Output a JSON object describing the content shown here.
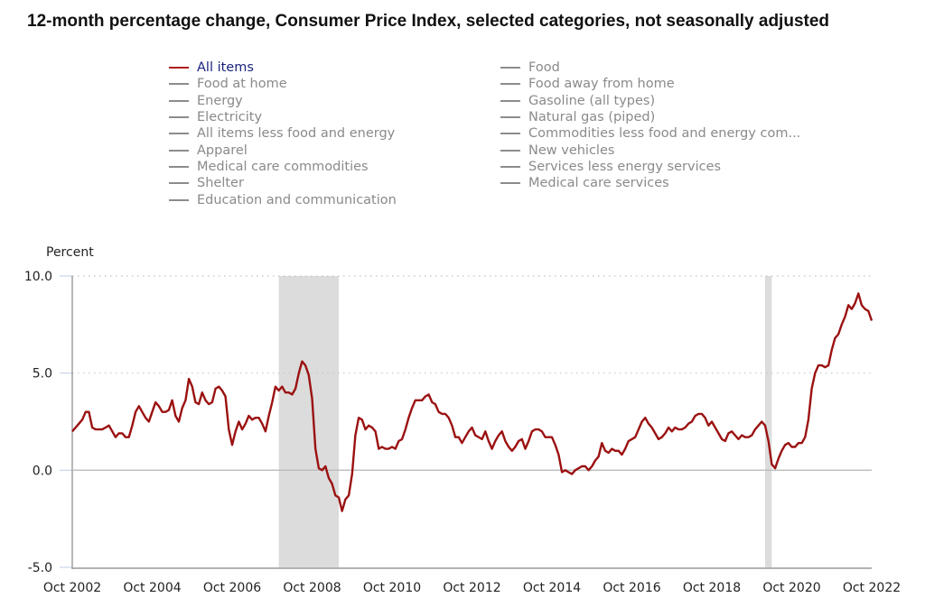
{
  "chart_data": {
    "type": "line",
    "title": "12-month percentage change, Consumer Price Index, selected categories, not seasonally adjusted",
    "ylabel": "Percent",
    "xlabel": "",
    "ylim": [
      -5.0,
      10.0
    ],
    "yticks": [
      "10.0",
      "5.0",
      "0.0",
      "-5.0"
    ],
    "ytick_values": [
      10,
      5,
      0,
      -5
    ],
    "xticks": [
      "Oct 2002",
      "Oct 2004",
      "Oct 2006",
      "Oct 2008",
      "Oct 2010",
      "Oct 2012",
      "Oct 2014",
      "Oct 2016",
      "Oct 2018",
      "Oct 2020",
      "Oct 2022"
    ],
    "x_start": "Oct 2002",
    "x_end": "Oct 2022",
    "grid": "horizontal dotted",
    "legend_placement": "top",
    "line_color": "#9b1111",
    "recessions": [
      {
        "start_month_index": 62,
        "end_month_index": 80,
        "label": "Dec 2007 - Jun 2009"
      },
      {
        "start_month_index": 208,
        "end_month_index": 210,
        "label": "Feb 2020 - Apr 2020"
      }
    ],
    "series": [
      {
        "name": "All items",
        "x_frequency": "monthly from Oct 2002",
        "values": [
          2.0,
          2.2,
          2.4,
          2.6,
          3.0,
          3.0,
          2.2,
          2.1,
          2.1,
          2.1,
          2.2,
          2.3,
          2.0,
          1.7,
          1.9,
          1.9,
          1.7,
          1.7,
          2.3,
          3.0,
          3.3,
          3.0,
          2.7,
          2.5,
          3.0,
          3.5,
          3.3,
          3.0,
          3.0,
          3.1,
          3.6,
          2.8,
          2.5,
          3.2,
          3.6,
          4.7,
          4.3,
          3.5,
          3.4,
          4.0,
          3.6,
          3.4,
          3.5,
          4.2,
          4.3,
          4.1,
          3.8,
          2.1,
          1.3,
          2.0,
          2.5,
          2.1,
          2.4,
          2.8,
          2.6,
          2.7,
          2.7,
          2.4,
          2.0,
          2.8,
          3.5,
          4.3,
          4.1,
          4.3,
          4.0,
          4.0,
          3.9,
          4.2,
          5.0,
          5.6,
          5.4,
          4.9,
          3.7,
          1.1,
          0.1,
          0.0,
          0.2,
          -0.4,
          -0.7,
          -1.3,
          -1.4,
          -2.1,
          -1.5,
          -1.3,
          -0.2,
          1.8,
          2.7,
          2.6,
          2.1,
          2.3,
          2.2,
          2.0,
          1.1,
          1.2,
          1.1,
          1.1,
          1.2,
          1.1,
          1.5,
          1.6,
          2.1,
          2.7,
          3.2,
          3.6,
          3.6,
          3.6,
          3.8,
          3.9,
          3.5,
          3.4,
          3.0,
          2.9,
          2.9,
          2.7,
          2.3,
          1.7,
          1.7,
          1.4,
          1.7,
          2.0,
          2.2,
          1.8,
          1.7,
          1.6,
          2.0,
          1.5,
          1.1,
          1.5,
          1.8,
          2.0,
          1.5,
          1.2,
          1.0,
          1.2,
          1.5,
          1.6,
          1.1,
          1.5,
          2.0,
          2.1,
          2.1,
          2.0,
          1.7,
          1.7,
          1.7,
          1.3,
          0.8,
          -0.1,
          0.0,
          -0.1,
          -0.2,
          0.0,
          0.1,
          0.2,
          0.2,
          0.0,
          0.2,
          0.5,
          0.7,
          1.4,
          1.0,
          0.9,
          1.1,
          1.0,
          1.0,
          0.8,
          1.1,
          1.5,
          1.6,
          1.7,
          2.1,
          2.5,
          2.7,
          2.4,
          2.2,
          1.9,
          1.6,
          1.7,
          1.9,
          2.2,
          2.0,
          2.2,
          2.1,
          2.1,
          2.2,
          2.4,
          2.5,
          2.8,
          2.9,
          2.9,
          2.7,
          2.3,
          2.5,
          2.2,
          1.9,
          1.6,
          1.5,
          1.9,
          2.0,
          1.8,
          1.6,
          1.8,
          1.7,
          1.7,
          1.8,
          2.1,
          2.3,
          2.5,
          2.3,
          1.5,
          0.3,
          0.1,
          0.6,
          1.0,
          1.3,
          1.4,
          1.2,
          1.2,
          1.4,
          1.4,
          1.7,
          2.6,
          4.2,
          5.0,
          5.4,
          5.4,
          5.3,
          5.4,
          6.2,
          6.8,
          7.0,
          7.5,
          7.9,
          8.5,
          8.3,
          8.6,
          9.1,
          8.5,
          8.3,
          8.2,
          7.7
        ]
      }
    ]
  },
  "legend": {
    "column_1": [
      {
        "label": "All items",
        "active": true
      },
      {
        "label": "Food at home",
        "active": false
      },
      {
        "label": "Energy",
        "active": false
      },
      {
        "label": "Electricity",
        "active": false
      },
      {
        "label": "All items less food and energy",
        "active": false
      },
      {
        "label": "Apparel",
        "active": false
      },
      {
        "label": "Medical care commodities",
        "active": false
      },
      {
        "label": "Shelter",
        "active": false
      },
      {
        "label": "Education and communication",
        "active": false
      }
    ],
    "column_2": [
      {
        "label": "Food",
        "active": false
      },
      {
        "label": "Food away from home",
        "active": false
      },
      {
        "label": "Gasoline (all types)",
        "active": false
      },
      {
        "label": "Natural gas (piped)",
        "active": false
      },
      {
        "label": "Commodities less food and energy com...",
        "active": false
      },
      {
        "label": "New vehicles",
        "active": false
      },
      {
        "label": "Services less energy services",
        "active": false
      },
      {
        "label": "Medical care services",
        "active": false
      }
    ]
  },
  "colors": {
    "active_line": "#9b1111",
    "active_legend_text": "#1a237e",
    "inactive_legend": "#8a8a8a",
    "recession_shade": "#dcdcdc"
  }
}
